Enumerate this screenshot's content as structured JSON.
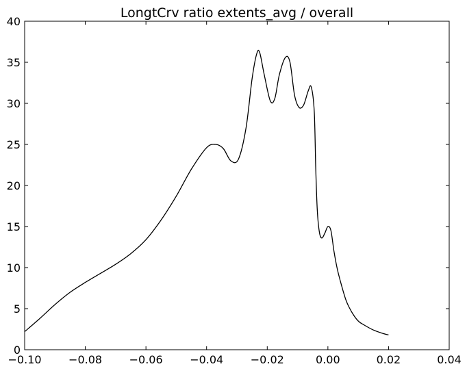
{
  "chart_data": {
    "type": "line",
    "title": "LongtCrv ratio extents_avg / overall",
    "xlabel": "",
    "ylabel": "",
    "xlim": [
      -0.1,
      0.04
    ],
    "ylim": [
      0,
      40
    ],
    "xticks": [
      -0.1,
      -0.08,
      -0.06,
      -0.04,
      -0.02,
      0.0,
      0.02,
      0.04
    ],
    "xtick_labels": [
      "−0.10",
      "−0.08",
      "−0.06",
      "−0.04",
      "−0.02",
      "0.00",
      "0.02",
      "0.04"
    ],
    "yticks": [
      0,
      5,
      10,
      15,
      20,
      25,
      30,
      35,
      40
    ],
    "ytick_labels": [
      "0",
      "5",
      "10",
      "15",
      "20",
      "25",
      "30",
      "35",
      "40"
    ],
    "grid": false,
    "line_color": "#000000",
    "series": [
      {
        "x": [
          -0.1,
          -0.095,
          -0.09,
          -0.085,
          -0.08,
          -0.075,
          -0.07,
          -0.065,
          -0.06,
          -0.055,
          -0.05,
          -0.045,
          -0.04,
          -0.037,
          -0.0345,
          -0.032,
          -0.0295,
          -0.027,
          -0.025,
          -0.0235,
          -0.0225,
          -0.021,
          -0.019,
          -0.0175,
          -0.016,
          -0.014,
          -0.0125,
          -0.011,
          -0.0095,
          -0.008,
          -0.0065,
          -0.0055,
          -0.0045,
          -0.004,
          -0.0035,
          -0.0028,
          -0.002,
          -0.001,
          0.0,
          0.001,
          0.002,
          0.003,
          0.004,
          0.006,
          0.008,
          0.01,
          0.012,
          0.015,
          0.018,
          0.02
        ],
        "y": [
          2.2,
          3.8,
          5.5,
          7.0,
          8.2,
          9.3,
          10.4,
          11.7,
          13.4,
          15.8,
          18.7,
          22.0,
          24.6,
          25.0,
          24.5,
          23.0,
          23.2,
          27.0,
          33.0,
          36.0,
          36.2,
          33.5,
          30.3,
          30.6,
          33.5,
          35.6,
          35.0,
          31.0,
          29.5,
          29.8,
          31.5,
          32.0,
          29.0,
          22.0,
          17.0,
          14.3,
          13.6,
          14.2,
          15.0,
          14.5,
          12.0,
          10.0,
          8.5,
          6.0,
          4.5,
          3.5,
          3.0,
          2.4,
          2.0,
          1.8
        ]
      }
    ]
  }
}
